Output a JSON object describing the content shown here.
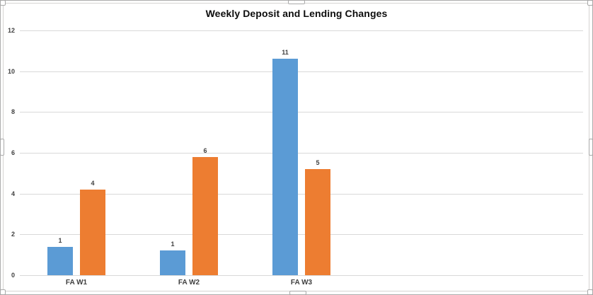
{
  "chart_data": {
    "type": "bar",
    "title": "Weekly Deposit and Lending Changes",
    "categories": [
      "FA W1",
      "FA W2",
      "FA W3"
    ],
    "series": [
      {
        "color": "#5B9BD5",
        "values": [
          1.4,
          1.2,
          10.6
        ],
        "data_labels": [
          "1",
          "1",
          "11"
        ]
      },
      {
        "color": "#ED7D31",
        "values": [
          4.2,
          5.8,
          5.2
        ],
        "data_labels": [
          "4",
          "6",
          "5"
        ]
      }
    ],
    "y_axis": {
      "min": 0,
      "max": 12,
      "tick_interval": 2,
      "tick_labels": [
        "0",
        "2",
        "4",
        "6",
        "8",
        "10",
        "12"
      ]
    },
    "x_axis_labels": [
      "FA W1",
      "FA W2",
      "FA W3"
    ],
    "grid": true,
    "legend": "none",
    "data_labels_shown": true,
    "colors": {
      "bar_blue": "#5B9BD5",
      "bar_orange": "#ED7D31",
      "gridline": "#D9D9D9",
      "axis_text": "#404040",
      "title_text": "#0D0D0D",
      "chart_border": "#D6D4D2",
      "selection_frame": "#ACACAC",
      "background": "#FFFFFF"
    }
  }
}
